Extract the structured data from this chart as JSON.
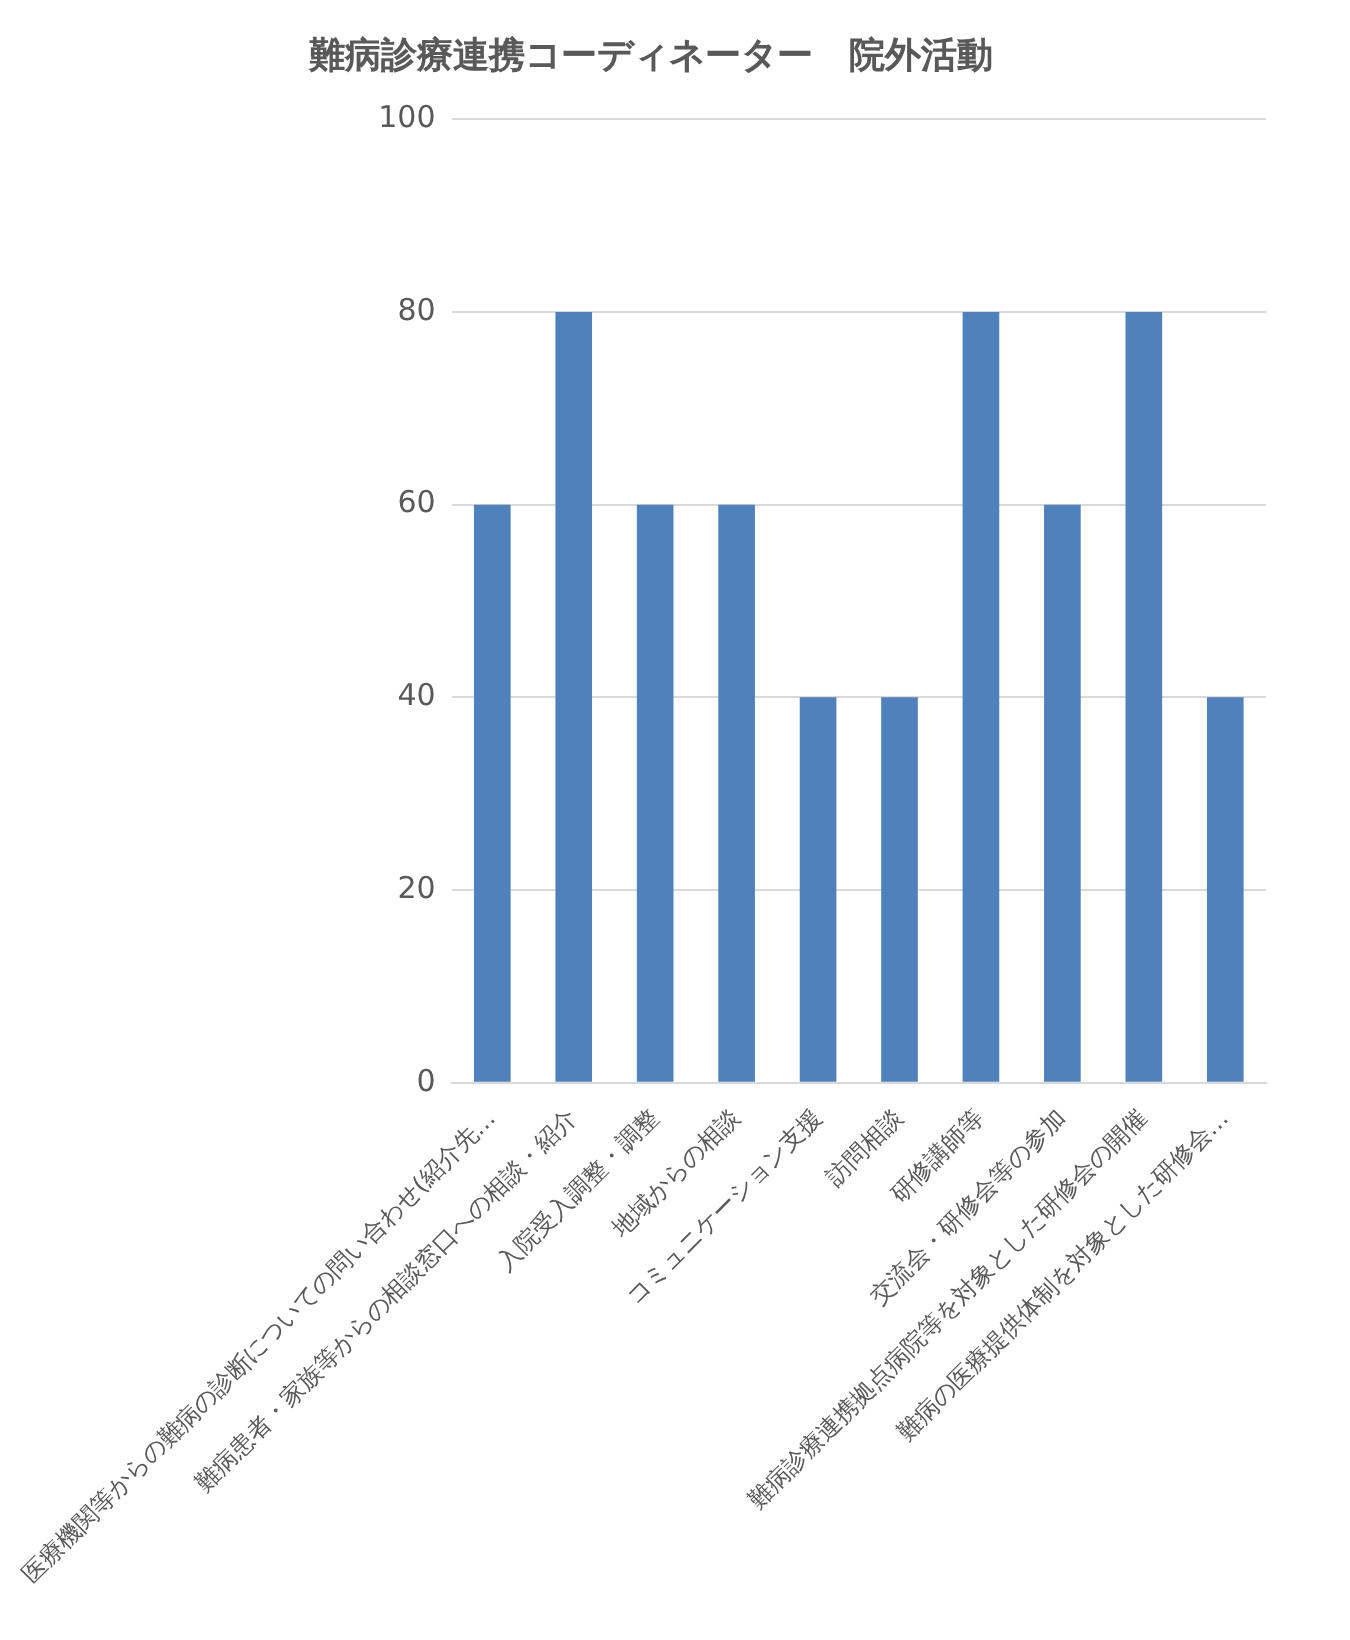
{
  "chart_data": {
    "type": "bar",
    "title": "難病診療連携コーディネーター　院外活動",
    "categories": [
      "医療機関等からの難病の診断についての問い合わせ(紹介先…",
      "難病患者・家族等からの相談窓口への相談・紹介",
      "入院受入調整・調整",
      "地域からの相談",
      "コミュニケーション支援",
      "訪問相談",
      "研修講師等",
      "交流会・研修会等の参加",
      "難病診療連携拠点病院等を対象とした研修会の開催",
      "難病の医療提供体制を対象とした研修会…"
    ],
    "values": [
      60,
      80,
      60,
      60,
      40,
      40,
      80,
      60,
      80,
      40
    ],
    "color": "#4f81bd",
    "ylim": [
      0,
      100
    ],
    "yticks": [
      0,
      20,
      40,
      60,
      80,
      100
    ],
    "grid": "y"
  }
}
